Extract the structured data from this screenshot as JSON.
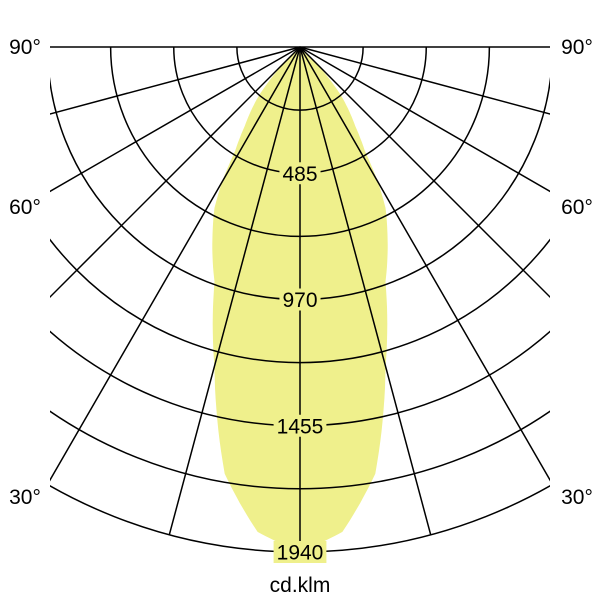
{
  "chart_data": {
    "type": "polar",
    "unit_label": "cd.klm",
    "radial_max": 1940,
    "radial_ring_step": 242.5,
    "radial_tick_labels": [
      "485",
      "970",
      "1455",
      "1940"
    ],
    "radial_tick_values": [
      485,
      970,
      1455,
      1940
    ],
    "angle_step_deg": 15,
    "angle_labels": [
      "90°",
      "60°",
      "30°"
    ],
    "angle_label_values": [
      90,
      60,
      30
    ],
    "grid": true,
    "fill_color": "#eff08c",
    "series": [
      {
        "symmetric": true,
        "angles_deg": [
          0,
          5,
          10,
          15,
          20,
          25,
          28,
          30,
          32,
          35,
          40,
          45,
          50
        ],
        "values": [
          1940,
          1870,
          1665,
          1270,
          960,
          795,
          700,
          600,
          470,
          370,
          250,
          90,
          0
        ]
      }
    ]
  }
}
